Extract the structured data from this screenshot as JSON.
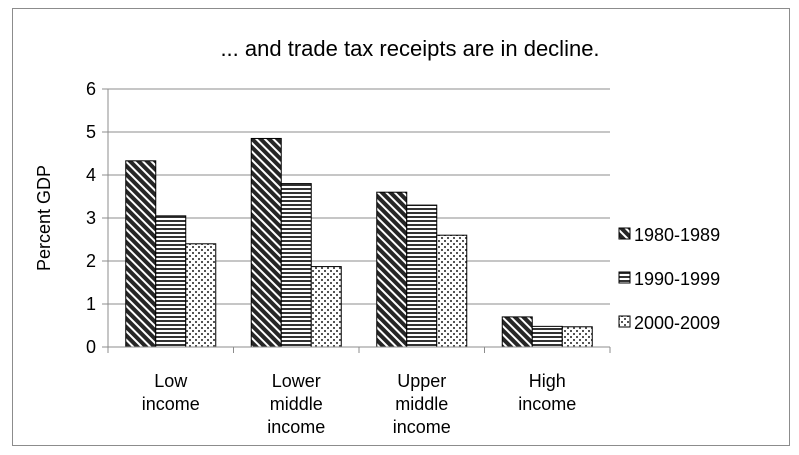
{
  "chart_data": {
    "type": "bar",
    "title": "... and trade tax receipts are in decline.",
    "ylabel": "Percent GDP",
    "xlabel": "",
    "ylim": [
      0,
      6
    ],
    "yticks": [
      0,
      1,
      2,
      3,
      4,
      5,
      6
    ],
    "grid": true,
    "legend_position": "right",
    "categories": [
      [
        "Low",
        "income"
      ],
      [
        "Lower",
        "middle",
        "income"
      ],
      [
        "Upper",
        "middle",
        "income"
      ],
      [
        "High",
        "income"
      ]
    ],
    "series": [
      {
        "name": "1980-1989",
        "pattern": "diagonal-hatch",
        "values": [
          4.33,
          4.85,
          3.6,
          0.7
        ]
      },
      {
        "name": "1990-1999",
        "pattern": "horizontal-lines",
        "values": [
          3.05,
          3.8,
          3.3,
          0.48
        ]
      },
      {
        "name": "2000-2009",
        "pattern": "dots",
        "values": [
          2.4,
          1.87,
          2.6,
          0.47
        ]
      }
    ]
  }
}
